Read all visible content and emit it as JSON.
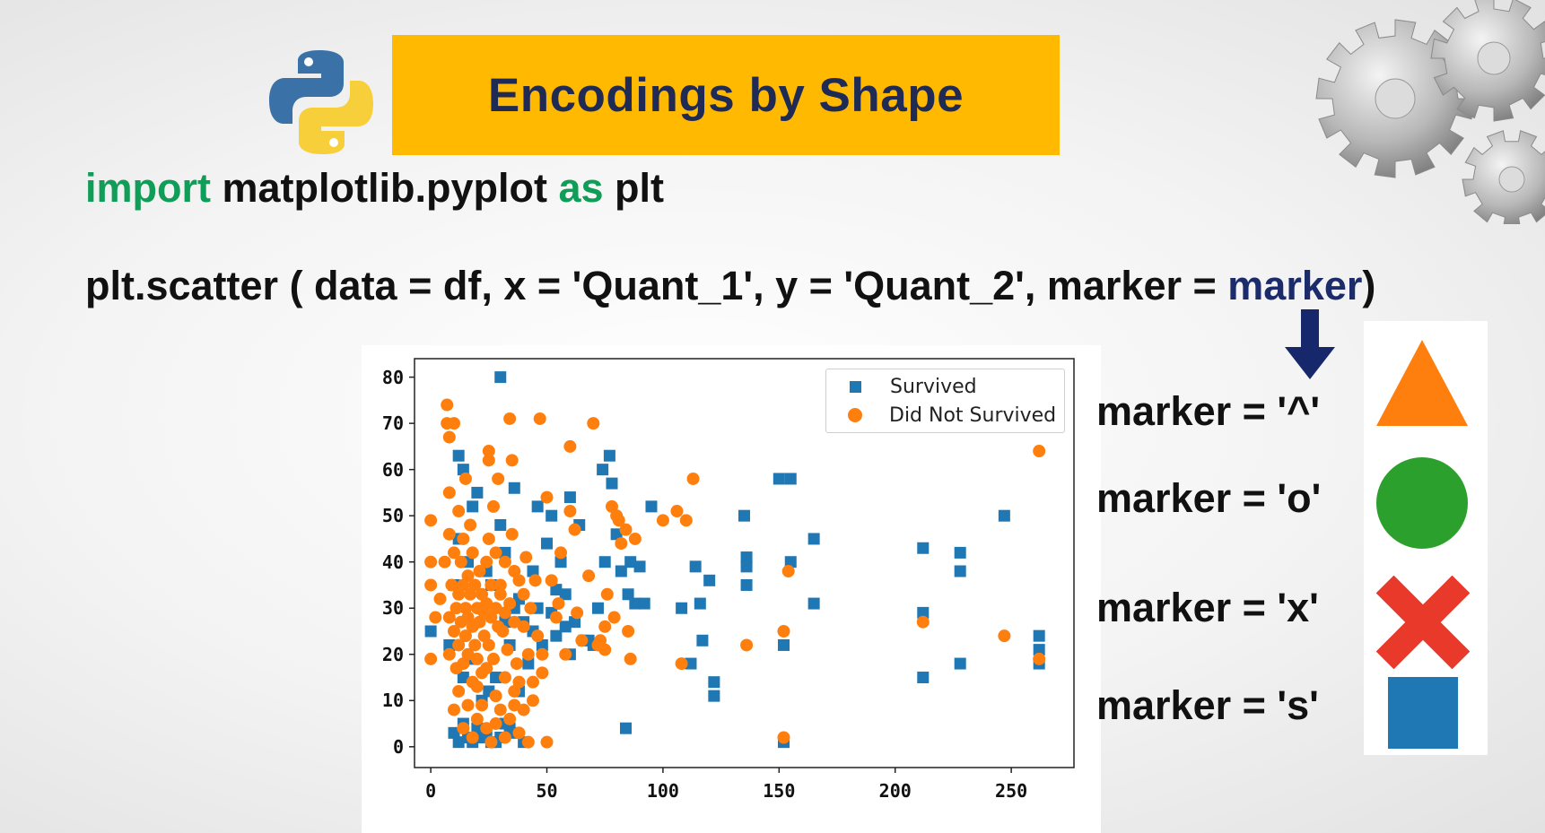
{
  "title": "Encodings by Shape",
  "code": {
    "line1": {
      "kw1": "import",
      "mid": " matplotlib.pyplot ",
      "kw2": "as",
      "end": " plt"
    },
    "line2": {
      "pre": "plt.scatter ( data = df, x = 'Quant_1', y = 'Quant_2', marker = ",
      "hl": "marker",
      "post": ")"
    }
  },
  "markers": [
    {
      "label": "marker = '^'",
      "shape": "triangle",
      "color": "#ff7f0e"
    },
    {
      "label": "marker = 'o'",
      "shape": "circle",
      "color": "#2ca02c"
    },
    {
      "label": "marker = 'x'",
      "shape": "x",
      "color": "#e8392b"
    },
    {
      "label": "marker = 's'",
      "shape": "square",
      "color": "#1f77b4"
    }
  ],
  "icons": [
    "python-logo",
    "gear-icon",
    "down-arrow-icon"
  ],
  "chart_data": {
    "type": "scatter",
    "x_ticks": [
      "0",
      "50",
      "100",
      "150",
      "200",
      "250"
    ],
    "y_ticks": [
      "0",
      "10",
      "20",
      "30",
      "40",
      "50",
      "60",
      "70",
      "80"
    ],
    "xlim": [
      -7,
      277
    ],
    "ylim": [
      -4.5,
      84
    ],
    "legend": {
      "placement": "top-right"
    },
    "series": [
      {
        "name": "Survived",
        "marker": "s",
        "color": "#1f77b4",
        "points": [
          [
            0,
            25
          ],
          [
            30,
            80
          ],
          [
            8,
            22
          ],
          [
            10,
            35
          ],
          [
            12,
            45
          ],
          [
            12,
            63
          ],
          [
            14,
            60
          ],
          [
            16,
            40
          ],
          [
            18,
            52
          ],
          [
            20,
            55
          ],
          [
            22,
            30
          ],
          [
            24,
            38
          ],
          [
            25,
            12
          ],
          [
            26,
            1
          ],
          [
            28,
            15
          ],
          [
            30,
            48
          ],
          [
            32,
            27
          ],
          [
            34,
            22
          ],
          [
            36,
            56
          ],
          [
            38,
            32
          ],
          [
            40,
            27
          ],
          [
            42,
            18
          ],
          [
            44,
            38
          ],
          [
            46,
            30
          ],
          [
            48,
            22
          ],
          [
            50,
            44
          ],
          [
            52,
            50
          ],
          [
            54,
            24
          ],
          [
            56,
            40
          ],
          [
            58,
            33
          ],
          [
            60,
            54
          ],
          [
            62,
            27
          ],
          [
            64,
            48
          ],
          [
            66,
            23
          ],
          [
            68,
            23
          ],
          [
            70,
            22
          ],
          [
            72,
            30
          ],
          [
            74,
            60
          ],
          [
            75,
            40
          ],
          [
            77,
            63
          ],
          [
            78,
            57
          ],
          [
            80,
            46
          ],
          [
            82,
            38
          ],
          [
            84,
            4
          ],
          [
            85,
            33
          ],
          [
            86,
            40
          ],
          [
            88,
            31
          ],
          [
            90,
            39
          ],
          [
            92,
            31
          ],
          [
            95,
            52
          ],
          [
            108,
            30
          ],
          [
            112,
            18
          ],
          [
            114,
            39
          ],
          [
            116,
            31
          ],
          [
            117,
            23
          ],
          [
            120,
            36
          ],
          [
            122,
            14
          ],
          [
            122,
            11
          ],
          [
            135,
            50
          ],
          [
            136,
            41
          ],
          [
            136,
            39
          ],
          [
            136,
            35
          ],
          [
            150,
            58
          ],
          [
            152,
            22
          ],
          [
            152,
            1
          ],
          [
            155,
            58
          ],
          [
            155,
            40
          ],
          [
            165,
            45
          ],
          [
            165,
            31
          ],
          [
            212,
            43
          ],
          [
            212,
            29
          ],
          [
            212,
            15
          ],
          [
            228,
            42
          ],
          [
            228,
            38
          ],
          [
            228,
            18
          ],
          [
            247,
            50
          ],
          [
            262,
            24
          ],
          [
            262,
            21
          ],
          [
            262,
            18
          ],
          [
            10,
            3
          ],
          [
            12,
            1
          ],
          [
            14,
            5
          ],
          [
            16,
            2
          ],
          [
            18,
            1
          ],
          [
            20,
            4
          ],
          [
            22,
            2
          ],
          [
            24,
            3
          ],
          [
            28,
            1
          ],
          [
            30,
            2
          ],
          [
            32,
            5
          ],
          [
            34,
            4
          ],
          [
            36,
            3
          ],
          [
            40,
            1
          ],
          [
            14,
            15
          ],
          [
            18,
            19
          ],
          [
            22,
            10
          ],
          [
            26,
            35
          ],
          [
            32,
            42
          ],
          [
            36,
            30
          ],
          [
            38,
            12
          ],
          [
            44,
            25
          ],
          [
            46,
            52
          ],
          [
            52,
            29
          ],
          [
            54,
            34
          ],
          [
            58,
            26
          ],
          [
            60,
            20
          ]
        ]
      },
      {
        "name": "Did Not Survived",
        "marker": "o",
        "color": "#ff7f0e",
        "points": [
          [
            0,
            49
          ],
          [
            0,
            19
          ],
          [
            0,
            35
          ],
          [
            0,
            40
          ],
          [
            2,
            28
          ],
          [
            4,
            32
          ],
          [
            6,
            40
          ],
          [
            7,
            74
          ],
          [
            7,
            70
          ],
          [
            8,
            67
          ],
          [
            8,
            55
          ],
          [
            8,
            46
          ],
          [
            8,
            20
          ],
          [
            8,
            28
          ],
          [
            9,
            35
          ],
          [
            10,
            70
          ],
          [
            10,
            42
          ],
          [
            10,
            25
          ],
          [
            11,
            30
          ],
          [
            11,
            17
          ],
          [
            12,
            51
          ],
          [
            12,
            33
          ],
          [
            12,
            22
          ],
          [
            13,
            40
          ],
          [
            13,
            27
          ],
          [
            14,
            45
          ],
          [
            14,
            35
          ],
          [
            14,
            18
          ],
          [
            15,
            58
          ],
          [
            15,
            30
          ],
          [
            15,
            24
          ],
          [
            16,
            37
          ],
          [
            16,
            28
          ],
          [
            16,
            20
          ],
          [
            17,
            48
          ],
          [
            17,
            33
          ],
          [
            18,
            42
          ],
          [
            18,
            26
          ],
          [
            18,
            14
          ],
          [
            19,
            35
          ],
          [
            19,
            22
          ],
          [
            20,
            30
          ],
          [
            20,
            19
          ],
          [
            21,
            38
          ],
          [
            21,
            27
          ],
          [
            22,
            33
          ],
          [
            22,
            16
          ],
          [
            23,
            24
          ],
          [
            23,
            29
          ],
          [
            24,
            40
          ],
          [
            24,
            31
          ],
          [
            25,
            64
          ],
          [
            25,
            62
          ],
          [
            25,
            45
          ],
          [
            25,
            22
          ],
          [
            26,
            35
          ],
          [
            26,
            28
          ],
          [
            27,
            52
          ],
          [
            27,
            19
          ],
          [
            28,
            42
          ],
          [
            28,
            30
          ],
          [
            29,
            26
          ],
          [
            29,
            58
          ],
          [
            30,
            35
          ],
          [
            30,
            33
          ],
          [
            31,
            25
          ],
          [
            32,
            40
          ],
          [
            32,
            29
          ],
          [
            33,
            21
          ],
          [
            34,
            71
          ],
          [
            34,
            31
          ],
          [
            35,
            62
          ],
          [
            35,
            46
          ],
          [
            36,
            38
          ],
          [
            36,
            27
          ],
          [
            37,
            18
          ],
          [
            38,
            36
          ],
          [
            38,
            14
          ],
          [
            40,
            33
          ],
          [
            40,
            26
          ],
          [
            41,
            41
          ],
          [
            42,
            20
          ],
          [
            43,
            30
          ],
          [
            44,
            10
          ],
          [
            45,
            36
          ],
          [
            46,
            24
          ],
          [
            47,
            71
          ],
          [
            48,
            20
          ],
          [
            50,
            54
          ],
          [
            50,
            1
          ],
          [
            52,
            36
          ],
          [
            54,
            28
          ],
          [
            55,
            31
          ],
          [
            56,
            42
          ],
          [
            58,
            20
          ],
          [
            60,
            65
          ],
          [
            60,
            51
          ],
          [
            62,
            47
          ],
          [
            63,
            29
          ],
          [
            65,
            23
          ],
          [
            68,
            37
          ],
          [
            70,
            70
          ],
          [
            72,
            22
          ],
          [
            73,
            23
          ],
          [
            75,
            26
          ],
          [
            75,
            21
          ],
          [
            76,
            33
          ],
          [
            78,
            52
          ],
          [
            79,
            28
          ],
          [
            80,
            50
          ],
          [
            81,
            49
          ],
          [
            82,
            44
          ],
          [
            84,
            47
          ],
          [
            85,
            25
          ],
          [
            86,
            19
          ],
          [
            88,
            45
          ],
          [
            100,
            49
          ],
          [
            106,
            51
          ],
          [
            108,
            18
          ],
          [
            110,
            49
          ],
          [
            113,
            58
          ],
          [
            136,
            22
          ],
          [
            152,
            2
          ],
          [
            152,
            25
          ],
          [
            154,
            38
          ],
          [
            212,
            27
          ],
          [
            247,
            24
          ],
          [
            262,
            64
          ],
          [
            262,
            19
          ],
          [
            10,
            8
          ],
          [
            14,
            4
          ],
          [
            18,
            2
          ],
          [
            20,
            6
          ],
          [
            22,
            9
          ],
          [
            24,
            4
          ],
          [
            26,
            1
          ],
          [
            28,
            5
          ],
          [
            30,
            8
          ],
          [
            32,
            2
          ],
          [
            34,
            6
          ],
          [
            36,
            9
          ],
          [
            38,
            3
          ],
          [
            42,
            1
          ],
          [
            12,
            12
          ],
          [
            16,
            9
          ],
          [
            20,
            13
          ],
          [
            24,
            17
          ],
          [
            28,
            11
          ],
          [
            32,
            15
          ],
          [
            36,
            12
          ],
          [
            40,
            8
          ],
          [
            44,
            14
          ],
          [
            48,
            16
          ]
        ]
      }
    ]
  }
}
